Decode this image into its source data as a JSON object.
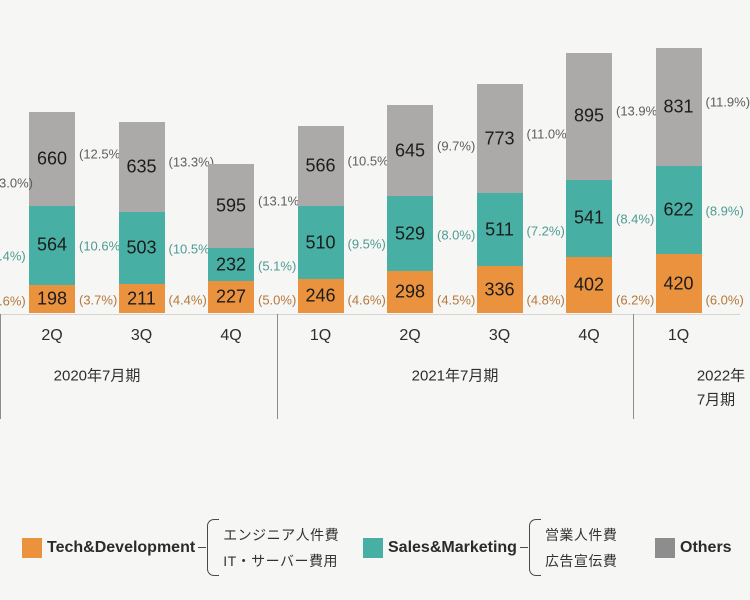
{
  "colors": {
    "background": "#F6F6F4",
    "bar_tech": "#EA923E",
    "bar_sales": "#47AFA4",
    "bar_others": "#ABAAA9",
    "legend_others_swatch": "#8D8D8D",
    "pct_tech": "#B5783C",
    "pct_sales": "#4E9B93",
    "pct_others": "#5E5E5E",
    "value_text": "#1C1C1C",
    "axis_text": "#2E2E2E",
    "axis_line": "#D6D5D2",
    "divider_line": "#8D8D8D"
  },
  "chart_data": {
    "type": "bar",
    "stacked": true,
    "categories": [
      "2Q",
      "3Q",
      "4Q",
      "1Q",
      "2Q",
      "3Q",
      "4Q",
      "1Q"
    ],
    "year_groups": [
      {
        "label": "2020年7月期",
        "label_line2": "",
        "quarters": [
          "2Q",
          "3Q",
          "4Q"
        ]
      },
      {
        "label": "2021年7月期",
        "label_line2": "",
        "quarters": [
          "1Q",
          "2Q",
          "3Q",
          "4Q"
        ]
      },
      {
        "label": "2022年",
        "label_line2": "7月期",
        "quarters": [
          "1Q"
        ]
      }
    ],
    "series": [
      {
        "key": "tech",
        "name": "Tech&Development",
        "values": [
          198,
          211,
          227,
          246,
          298,
          336,
          402,
          420
        ],
        "pct_labels": [
          "(3.7%)",
          "(4.4%)",
          "(5.0%)",
          "(4.6%)",
          "(4.5%)",
          "(4.8%)",
          "(6.2%)",
          "(6.0%)"
        ]
      },
      {
        "key": "sales",
        "name": "Sales&Marketing",
        "values": [
          564,
          503,
          232,
          510,
          529,
          511,
          541,
          622
        ],
        "pct_labels": [
          "(10.6%)",
          "(10.5%)",
          "(5.1%)",
          "(9.5%)",
          "(8.0%)",
          "(7.2%)",
          "(8.4%)",
          "(8.9%)"
        ]
      },
      {
        "key": "others",
        "name": "Others",
        "values": [
          660,
          635,
          595,
          566,
          645,
          773,
          895,
          831
        ],
        "pct_labels": [
          "(12.5%)",
          "(13.3%)",
          "(13.1%)",
          "(10.5%)",
          "(9.7%)",
          "(11.0%)",
          "(13.9%)",
          "(11.9%)"
        ]
      }
    ],
    "clipped_left_pct_labels": [
      {
        "series": "others",
        "text": "3.0%)"
      },
      {
        "series": "sales",
        "text": ".4%)"
      },
      {
        "series": "tech",
        "text": ".6%)"
      }
    ]
  },
  "legend": {
    "items": [
      {
        "key": "tech",
        "label": "Tech&Development",
        "notes": [
          "エンジニア人件費",
          "IT・サーバー費用"
        ]
      },
      {
        "key": "sales",
        "label": "Sales&Marketing",
        "notes": [
          "営業人件費",
          "広告宣伝費"
        ]
      },
      {
        "key": "others",
        "label": "Others",
        "notes": []
      }
    ]
  }
}
